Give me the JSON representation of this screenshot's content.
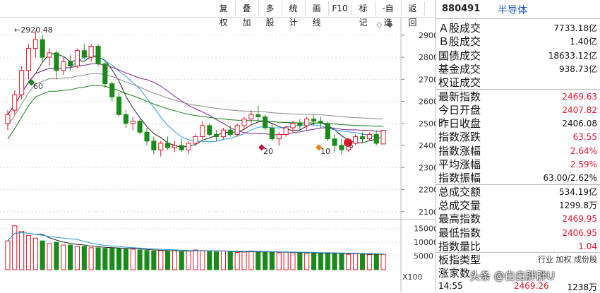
{
  "toolbar": {
    "buttons": [
      "复权",
      "叠加",
      "多股",
      "统计",
      "画线",
      "F10",
      "标记",
      "-自选",
      "返回"
    ]
  },
  "index": {
    "code": "880491",
    "name": "半导体"
  },
  "price_axis": [
    "2900",
    "2800",
    "2700",
    "2600",
    "2500",
    "2400",
    "2300",
    "2200",
    "2100"
  ],
  "volume_axis": [
    "15000",
    "10000",
    "5000"
  ],
  "volume_unit": "X100",
  "annotations": {
    "high_label": "2920.48",
    "marker_60": "60",
    "marker_20": "20",
    "marker_10": "10",
    "marker_5": "5"
  },
  "stats": [
    {
      "label": "Ａ股成交",
      "value": "7733.18亿"
    },
    {
      "label": "Ｂ股成交",
      "value": "1.40亿"
    },
    {
      "label": "国债成交",
      "value": "18633.12亿"
    },
    {
      "label": "基金成交",
      "value": "938.73亿"
    },
    {
      "label": "权证成交",
      "value": ""
    },
    {
      "label": "最新指数",
      "value": "2469.63",
      "red": true
    },
    {
      "label": "今日开盘",
      "value": "2407.82",
      "red": true
    },
    {
      "label": "昨日收盘",
      "value": "2406.08"
    },
    {
      "label": "指数涨跌",
      "value": "63.55",
      "red": true
    },
    {
      "label": "指数涨幅",
      "value": "2.64%",
      "red": true
    },
    {
      "label": "平均涨幅",
      "value": "2.59%",
      "red": true
    },
    {
      "label": "指数振幅",
      "value": "63.00/2.62%"
    },
    {
      "label": "总成交额",
      "value": "534.19亿"
    },
    {
      "label": "总成交量",
      "value": "1299.8万"
    },
    {
      "label": "最高指数",
      "value": "2469.95",
      "red": true
    },
    {
      "label": "最低指数",
      "value": "2406.95",
      "red": true
    },
    {
      "label": "指数量比",
      "value": "1.04",
      "red": true
    }
  ],
  "board_type": {
    "label": "板指类型",
    "values": "行业 加权 成份股"
  },
  "partial_row": {
    "label": "涨家数",
    "value": ""
  },
  "bottom_row": {
    "time": "14:55",
    "price": "2469.26",
    "vol": "1238万"
  },
  "watermark": "头条 @白白胖胖U",
  "colors": {
    "up": "#e0152c",
    "down": "#1a8a1a",
    "ma5": "#222222",
    "ma10": "#2a9bd6",
    "ma20": "#7a1f8a",
    "ma60": "#1a7a1a",
    "ma120": "#888888"
  },
  "chart_data": {
    "type": "candlestick",
    "ylim": [
      2080,
      2970
    ],
    "candles": [
      [
        2500,
        2560,
        2470,
        2540
      ],
      [
        2560,
        2650,
        2540,
        2630
      ],
      [
        2630,
        2760,
        2610,
        2740
      ],
      [
        2740,
        2860,
        2700,
        2840
      ],
      [
        2840,
        2920,
        2800,
        2880
      ],
      [
        2880,
        2900,
        2780,
        2800
      ],
      [
        2800,
        2840,
        2760,
        2820
      ],
      [
        2820,
        2830,
        2700,
        2740
      ],
      [
        2740,
        2800,
        2720,
        2780
      ],
      [
        2780,
        2810,
        2740,
        2760
      ],
      [
        2760,
        2840,
        2750,
        2830
      ],
      [
        2830,
        2860,
        2790,
        2800
      ],
      [
        2800,
        2860,
        2780,
        2850
      ],
      [
        2850,
        2860,
        2760,
        2770
      ],
      [
        2770,
        2780,
        2660,
        2680
      ],
      [
        2680,
        2690,
        2600,
        2620
      ],
      [
        2620,
        2640,
        2530,
        2540
      ],
      [
        2540,
        2560,
        2480,
        2500
      ],
      [
        2500,
        2530,
        2470,
        2510
      ],
      [
        2510,
        2520,
        2450,
        2460
      ],
      [
        2460,
        2480,
        2400,
        2420
      ],
      [
        2420,
        2440,
        2360,
        2380
      ],
      [
        2380,
        2420,
        2350,
        2410
      ],
      [
        2410,
        2440,
        2380,
        2390
      ],
      [
        2390,
        2420,
        2370,
        2400
      ],
      [
        2400,
        2430,
        2370,
        2380
      ],
      [
        2380,
        2420,
        2360,
        2410
      ],
      [
        2410,
        2450,
        2400,
        2440
      ],
      [
        2440,
        2510,
        2430,
        2490
      ],
      [
        2490,
        2500,
        2440,
        2450
      ],
      [
        2450,
        2470,
        2420,
        2440
      ],
      [
        2440,
        2480,
        2430,
        2470
      ],
      [
        2470,
        2490,
        2440,
        2450
      ],
      [
        2450,
        2500,
        2440,
        2490
      ],
      [
        2490,
        2530,
        2470,
        2520
      ],
      [
        2520,
        2560,
        2500,
        2540
      ],
      [
        2540,
        2580,
        2510,
        2530
      ],
      [
        2530,
        2540,
        2470,
        2480
      ],
      [
        2480,
        2500,
        2420,
        2430
      ],
      [
        2430,
        2460,
        2400,
        2450
      ],
      [
        2450,
        2490,
        2440,
        2480
      ],
      [
        2480,
        2510,
        2460,
        2500
      ],
      [
        2500,
        2520,
        2470,
        2490
      ],
      [
        2490,
        2530,
        2470,
        2520
      ],
      [
        2520,
        2540,
        2490,
        2510
      ],
      [
        2510,
        2530,
        2480,
        2500
      ],
      [
        2500,
        2510,
        2420,
        2430
      ],
      [
        2430,
        2450,
        2370,
        2400
      ],
      [
        2400,
        2430,
        2360,
        2380
      ],
      [
        2380,
        2420,
        2370,
        2410
      ],
      [
        2410,
        2450,
        2400,
        2440
      ],
      [
        2440,
        2460,
        2410,
        2430
      ],
      [
        2430,
        2460,
        2420,
        2450
      ],
      [
        2450,
        2470,
        2400,
        2410
      ],
      [
        2407,
        2470,
        2407,
        2469
      ]
    ],
    "volumes": [
      10500,
      16000,
      14000,
      12500,
      11500,
      10500,
      9500,
      10000,
      9000,
      9000,
      8500,
      8500,
      8000,
      8000,
      7800,
      8000,
      7800,
      7500,
      7500,
      7200,
      7000,
      6800,
      7000,
      6800,
      7000,
      6500,
      6800,
      7200,
      7000,
      6800,
      6500,
      6800,
      6500,
      6300,
      6500,
      6800,
      6500,
      6500,
      6300,
      6200,
      6500,
      6200,
      6200,
      6000,
      6000,
      5800,
      6200,
      6000,
      5800,
      5600,
      5800,
      5600,
      5500,
      5800,
      5600
    ],
    "vol_ylim": [
      0,
      17500
    ]
  }
}
